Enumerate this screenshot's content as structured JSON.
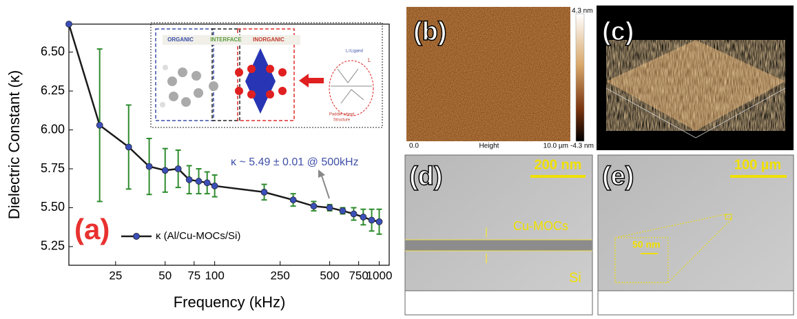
{
  "chart_data": {
    "type": "line",
    "x_log": true,
    "xlabel": "Frequency (kHz)",
    "ylabel": "Dielectric Constant (κ)",
    "panel_label": "(a)",
    "annotation": "κ ~ 5.49 ± 0.01 @ 500kHz",
    "inset_labels": [
      "ORGANIC",
      "INTERFACE",
      "INORGANIC",
      "L=Ligand",
      "Paddle-wheel",
      "Structure",
      "L"
    ],
    "x": [
      13,
      20,
      30,
      40,
      50,
      60,
      70,
      80,
      90,
      100,
      200,
      300,
      400,
      500,
      600,
      700,
      800,
      900,
      1000
    ],
    "series": [
      {
        "name": "κ (Al/Cu-MOCs/Si)",
        "color": "#1a1a1a",
        "marker_color": "#3b4fb8",
        "error_color": "#2e8b2e",
        "values": [
          6.68,
          6.03,
          5.89,
          5.765,
          5.74,
          5.75,
          5.68,
          5.67,
          5.66,
          5.64,
          5.6,
          5.55,
          5.51,
          5.5,
          5.48,
          5.46,
          5.44,
          5.42,
          5.41
        ],
        "errors": [
          null,
          0.49,
          0.27,
          0.18,
          0.14,
          0.12,
          0.09,
          0.08,
          0.07,
          0.07,
          0.05,
          0.04,
          0.03,
          0.02,
          0.02,
          0.04,
          0.05,
          0.07,
          0.08
        ]
      }
    ],
    "xlim": [
      13,
      1150
    ],
    "ylim": [
      5.13,
      6.68
    ],
    "xticks": [
      25,
      50,
      75,
      100,
      250,
      500,
      750,
      1000
    ],
    "yticks": [
      5.25,
      {
        "value": 5.5,
        "label": "5.50"
      },
      5.75,
      {
        "value": 6,
        "label": "6.00"
      },
      6.25,
      {
        "value": 6.5,
        "label": "6.50"
      }
    ],
    "grid": false,
    "legend": "lower left"
  },
  "panels": {
    "b": {
      "label": "(b)",
      "scale_max": "4.3 nm",
      "scale_min": "-4.3 nm",
      "x_start": "0.0",
      "x_label": "Height",
      "x_end": "10.0 µm"
    },
    "c": {
      "label": "(c)"
    },
    "d": {
      "label": "(d)",
      "scale_bar": "200 nm",
      "layer": "Cu-MOCs",
      "substrate": "Si"
    },
    "e": {
      "label": "(e)",
      "scale_bar": "100 µm",
      "inset_scale": "50 nm"
    }
  }
}
